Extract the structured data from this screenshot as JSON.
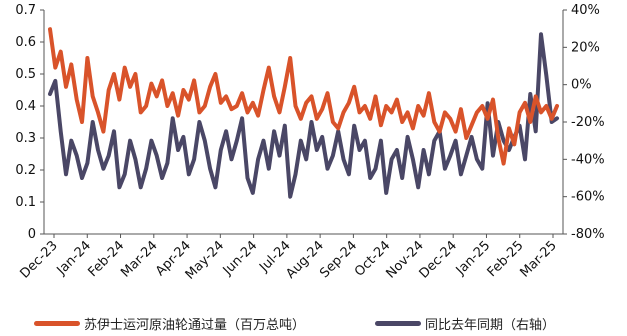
{
  "colors": {
    "primary": "#D9532A",
    "secondary": "#4A4766"
  },
  "legend": {
    "series_1": "苏伊士运河原油轮通过量（百万总吨）",
    "series_2": "同比去年同期（右轴）"
  },
  "chart_data": {
    "type": "line",
    "x_ticks": [
      "Dec-23",
      "Jan-24",
      "Feb-24",
      "Mar-24",
      "Apr-24",
      "May-24",
      "Jun-24",
      "Jul-24",
      "Aug-24",
      "Sep-24",
      "Oct-24",
      "Nov-24",
      "Dec-24",
      "Jan-25",
      "Feb-25",
      "Mar-25"
    ],
    "y_left": {
      "ticks": [
        "0",
        "0.1",
        "0.2",
        "0.3",
        "0.4",
        "0.5",
        "0.6",
        "0.7"
      ],
      "range": [
        0,
        0.7
      ]
    },
    "y_right": {
      "ticks": [
        "40%",
        "20%",
        "0%",
        "-20%",
        "-40%",
        "-60%",
        "-80%"
      ],
      "range": [
        -80,
        40
      ],
      "unit": "%"
    },
    "series": [
      {
        "name": "苏伊士运河原油轮通过量（百万总吨）",
        "axis": "left",
        "values": [
          0.64,
          0.52,
          0.57,
          0.46,
          0.53,
          0.42,
          0.35,
          0.55,
          0.43,
          0.38,
          0.32,
          0.45,
          0.5,
          0.42,
          0.52,
          0.46,
          0.5,
          0.38,
          0.4,
          0.47,
          0.43,
          0.48,
          0.4,
          0.44,
          0.37,
          0.45,
          0.42,
          0.48,
          0.38,
          0.4,
          0.46,
          0.5,
          0.41,
          0.43,
          0.39,
          0.4,
          0.44,
          0.38,
          0.41,
          0.37,
          0.45,
          0.52,
          0.43,
          0.38,
          0.46,
          0.55,
          0.4,
          0.36,
          0.41,
          0.43,
          0.36,
          0.39,
          0.44,
          0.35,
          0.33,
          0.38,
          0.41,
          0.46,
          0.38,
          0.4,
          0.36,
          0.43,
          0.34,
          0.4,
          0.38,
          0.42,
          0.35,
          0.38,
          0.33,
          0.4,
          0.37,
          0.44,
          0.35,
          0.32,
          0.38,
          0.36,
          0.32,
          0.39,
          0.3,
          0.34,
          0.38,
          0.4,
          0.36,
          0.42,
          0.3,
          0.22,
          0.33,
          0.28,
          0.38,
          0.41,
          0.35,
          0.43,
          0.38,
          0.4,
          0.36,
          0.4
        ]
      },
      {
        "name": "同比去年同期（右轴）",
        "axis": "right",
        "values": [
          -5,
          2,
          -25,
          -48,
          -30,
          -38,
          -50,
          -42,
          -20,
          -35,
          -45,
          -38,
          -25,
          -55,
          -48,
          -30,
          -40,
          -55,
          -45,
          -30,
          -38,
          -50,
          -42,
          -18,
          -35,
          -28,
          -48,
          -40,
          -20,
          -30,
          -45,
          -55,
          -35,
          -25,
          -40,
          -30,
          -18,
          -50,
          -58,
          -40,
          -30,
          -45,
          -25,
          -38,
          -22,
          -60,
          -48,
          -30,
          -40,
          -20,
          -35,
          -28,
          -45,
          -38,
          -25,
          -40,
          -48,
          -22,
          -35,
          -30,
          -50,
          -45,
          -30,
          -58,
          -40,
          -35,
          -50,
          -28,
          -40,
          -55,
          -35,
          -48,
          -30,
          -25,
          -45,
          -38,
          -30,
          -48,
          -38,
          -28,
          -40,
          -45,
          -10,
          -38,
          -20,
          -30,
          -35,
          -28,
          -22,
          -40,
          -5,
          -25,
          27,
          5,
          -20,
          -18
        ]
      }
    ]
  }
}
